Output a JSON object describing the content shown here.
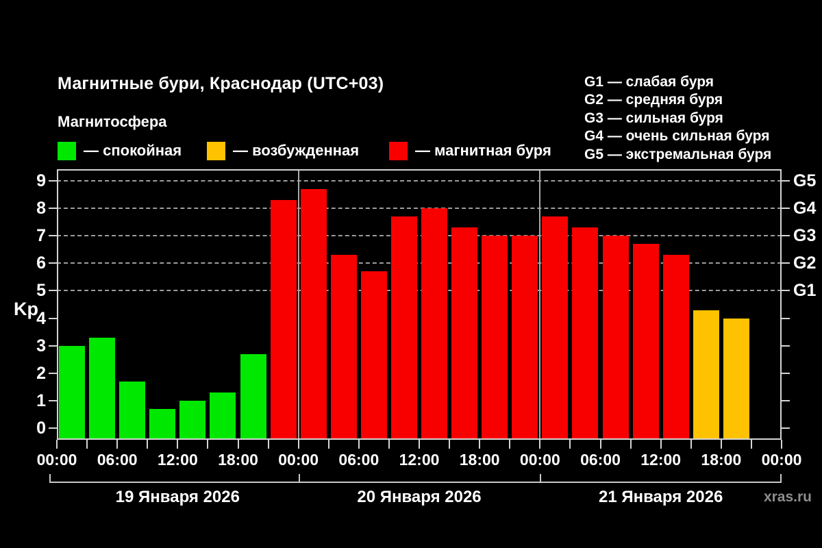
{
  "header": {
    "title": "Магнитные бури, Краснодар (UTC+03)",
    "subtitle": "Магнитосфера",
    "legend": [
      {
        "name": "quiet",
        "color": "#00e800",
        "label": "— спокойная"
      },
      {
        "name": "excited",
        "color": "#fec200",
        "label": "— возбужденная"
      },
      {
        "name": "storm",
        "color": "#f80000",
        "label": "— магнитная буря"
      }
    ],
    "storm_scale": [
      "G1 — слабая буря",
      "G2 — средняя буря",
      "G3 — сильная буря",
      "G4 — очень сильная буря",
      "G5 — экстремальная буря"
    ]
  },
  "watermark": "xras.ru",
  "chart_data": {
    "type": "bar",
    "title": "Магнитные бури, Краснодар (UTC+03)",
    "ylabel": "Kp",
    "ylim": [
      0,
      9
    ],
    "y_ticks": [
      0,
      1,
      2,
      3,
      4,
      5,
      6,
      7,
      8,
      9
    ],
    "gridlines_at": [
      5,
      6,
      7,
      8,
      9
    ],
    "right_axis_labels": [
      {
        "kp": 5,
        "label": "G1"
      },
      {
        "kp": 6,
        "label": "G2"
      },
      {
        "kp": 7,
        "label": "G3"
      },
      {
        "kp": 8,
        "label": "G4"
      },
      {
        "kp": 9,
        "label": "G5"
      }
    ],
    "interval_hours": 3,
    "x_tick_labels": [
      "00:00",
      "06:00",
      "12:00",
      "18:00",
      "00:00",
      "06:00",
      "12:00",
      "18:00",
      "00:00",
      "06:00",
      "12:00",
      "18:00",
      "00:00"
    ],
    "days": [
      {
        "date": "19 Января 2026",
        "values": [
          3,
          3.3,
          1.7,
          0.7,
          1,
          1.3,
          2.7,
          8.3
        ]
      },
      {
        "date": "20 Января 2026",
        "values": [
          8.7,
          6.3,
          5.7,
          7.7,
          8,
          7.3,
          7,
          7
        ]
      },
      {
        "date": "21 Января 2026",
        "values": [
          7.7,
          7.3,
          7,
          6.7,
          6.3,
          4.3,
          4,
          null
        ]
      }
    ],
    "color_rules": {
      "quiet_below": 4,
      "excited_below": 5,
      "storm_from": 5
    },
    "colors": {
      "quiet": "#00e800",
      "excited": "#fec200",
      "storm": "#f80000"
    },
    "legend_position": "top-left",
    "grid": "dashed horizontal at G-levels only"
  }
}
